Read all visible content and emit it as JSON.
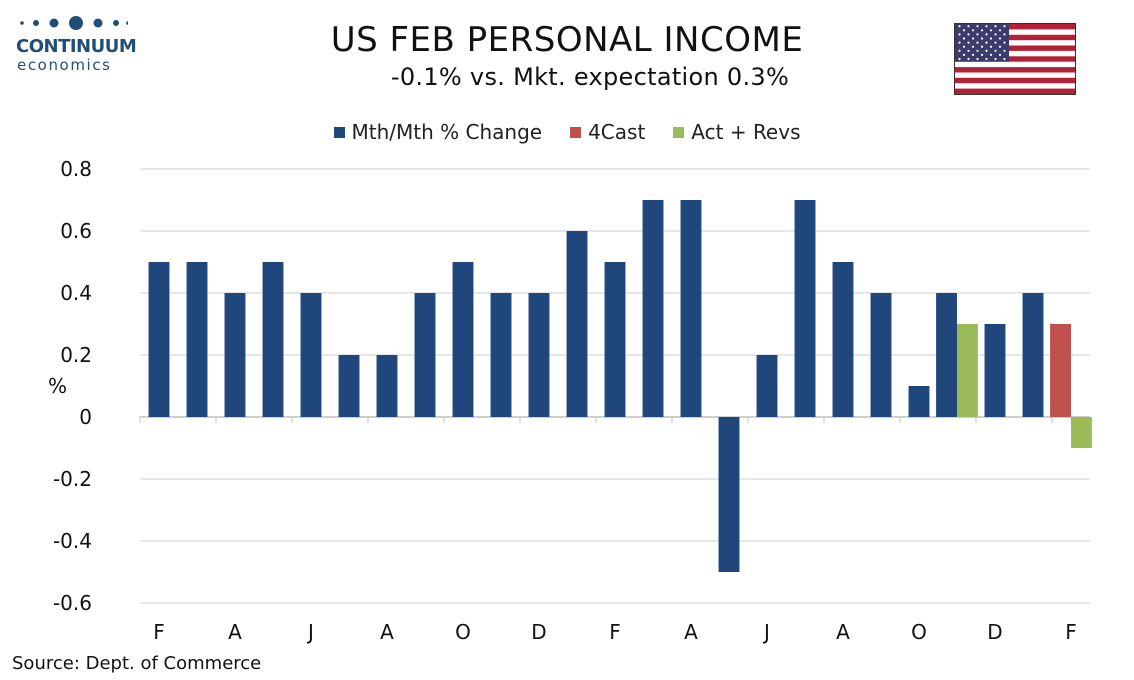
{
  "logo": {
    "name": "CONTINUUM",
    "sub": "economics"
  },
  "title": "US FEB PERSONAL INCOME",
  "subtitle": "-0.1% vs. Mkt. expectation 0.3%",
  "source": "Source: Dept. of Commerce",
  "colors": {
    "monthly": "#1f477b",
    "forecast": "#c0504d",
    "actual": "#9bbb59",
    "grid": "#cfcfcf",
    "brand": "#1f4f78"
  },
  "chart_data": {
    "type": "bar",
    "ylabel": "%",
    "ylim": [
      -0.6,
      0.8
    ],
    "yticks": [
      {
        "value": 0.8,
        "label": "0.8"
      },
      {
        "value": 0.6,
        "label": "0.6"
      },
      {
        "value": 0.4,
        "label": "0.4"
      },
      {
        "value": 0.2,
        "label": "0.2"
      },
      {
        "value": 0,
        "label": "0"
      },
      {
        "value": -0.2,
        "label": "-0.2"
      },
      {
        "value": -0.4,
        "label": "-0.4"
      },
      {
        "value": -0.6,
        "label": "-0.6"
      }
    ],
    "x_labels": [
      {
        "slot": 0,
        "label": "F"
      },
      {
        "slot": 2,
        "label": "A"
      },
      {
        "slot": 4,
        "label": "J"
      },
      {
        "slot": 6,
        "label": "A"
      },
      {
        "slot": 8,
        "label": "O"
      },
      {
        "slot": 10,
        "label": "D"
      },
      {
        "slot": 12,
        "label": "F"
      },
      {
        "slot": 14,
        "label": "A"
      },
      {
        "slot": 16,
        "label": "J"
      },
      {
        "slot": 18,
        "label": "A"
      },
      {
        "slot": 20,
        "label": "O"
      },
      {
        "slot": 22,
        "label": "D"
      },
      {
        "slot": 24,
        "label": "F"
      }
    ],
    "legend": [
      "Mth/Mth % Change",
      "4Cast",
      "Act + Revs"
    ],
    "series": [
      {
        "name": "Mth/Mth % Change",
        "values": [
          0.5,
          0.5,
          0.4,
          0.5,
          0.4,
          0.2,
          0.2,
          0.4,
          0.5,
          0.4,
          0.4,
          0.6,
          0.5,
          0.7,
          0.7,
          -0.5,
          0.2,
          0.7,
          0.5,
          0.4,
          0.1,
          0.4,
          0.3,
          0.4,
          null
        ]
      },
      {
        "name": "4Cast",
        "values": [
          null,
          null,
          null,
          null,
          null,
          null,
          null,
          null,
          null,
          null,
          null,
          null,
          null,
          null,
          null,
          null,
          null,
          null,
          null,
          null,
          null,
          null,
          null,
          null,
          0.3
        ]
      },
      {
        "name": "Act + Revs",
        "values": [
          null,
          null,
          null,
          null,
          null,
          null,
          null,
          null,
          null,
          null,
          null,
          null,
          null,
          null,
          null,
          null,
          null,
          null,
          null,
          null,
          null,
          0.3,
          null,
          null,
          -0.1
        ]
      }
    ]
  }
}
